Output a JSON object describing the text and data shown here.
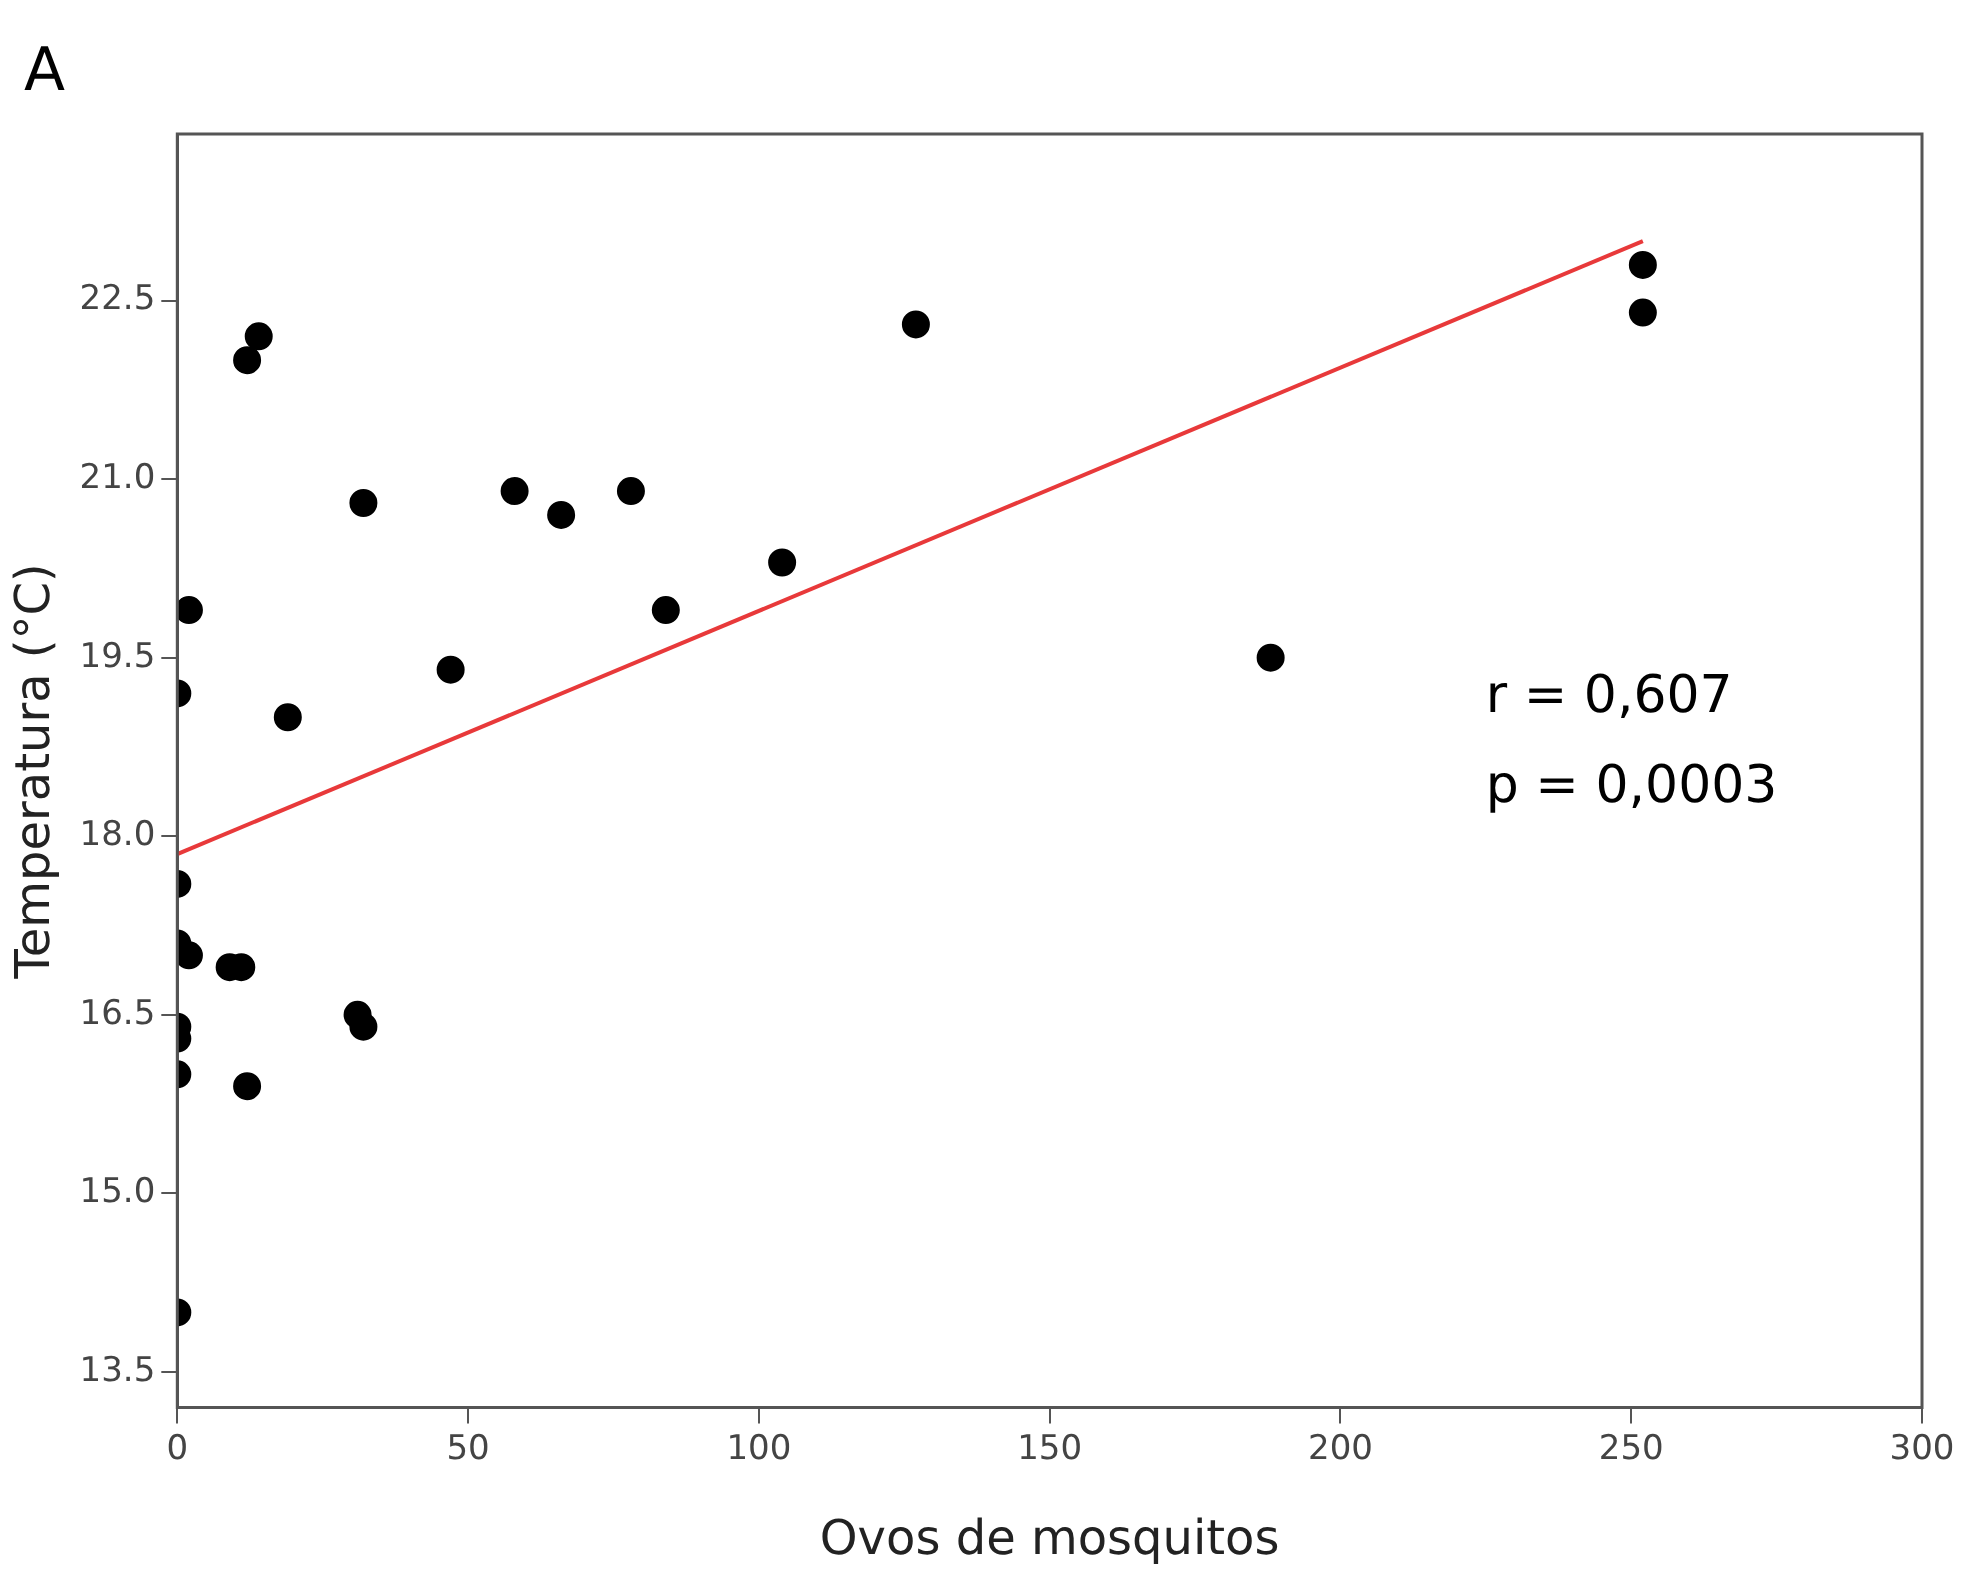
{
  "chart_data": {
    "type": "scatter",
    "xlabel": "Ovos de mosquitos",
    "ylabel": "Temperatura (°C)",
    "annotations": [
      "A",
      "r = 0,607",
      "p = 0,0003"
    ],
    "xlim": [
      0,
      300
    ],
    "xticks": [
      0,
      50,
      100,
      150,
      200,
      250,
      300
    ],
    "ylim": [
      13.2,
      23.9
    ],
    "yticks": [
      {
        "value": 13.5,
        "label": "13.5"
      },
      {
        "value": 15,
        "label": "15.0"
      },
      {
        "value": 16.5,
        "label": "16.5"
      },
      {
        "value": 18,
        "label": "18.0"
      },
      {
        "value": 19.5,
        "label": "19.5"
      },
      {
        "value": 21,
        "label": "21.0"
      },
      {
        "value": 22.5,
        "label": "22.5"
      }
    ],
    "grid": false,
    "legend": false,
    "marker": "circle",
    "series": [
      {
        "color": "#000000",
        "x": [
          0,
          2,
          12,
          14,
          32,
          19,
          47,
          58,
          66,
          78,
          84,
          104,
          127,
          188,
          252,
          252,
          0,
          0,
          2,
          9,
          11,
          0,
          0,
          31,
          32,
          12,
          0,
          0
        ],
        "values": [
          19.2,
          19.9,
          22.0,
          22.2,
          20.8,
          19.0,
          19.4,
          20.9,
          20.7,
          20.9,
          19.9,
          20.3,
          22.3,
          19.5,
          22.8,
          22.4,
          17.6,
          17.1,
          17.0,
          16.9,
          16.9,
          16.4,
          16.3,
          16.5,
          16.4,
          15.9,
          16.0,
          14.0
        ]
      },
      {
        "type": "line",
        "color": "#e8393a",
        "x": [
          0,
          252
        ],
        "values": [
          17.85,
          23.0
        ],
        "line_style": "solid",
        "marker": "none"
      }
    ]
  }
}
